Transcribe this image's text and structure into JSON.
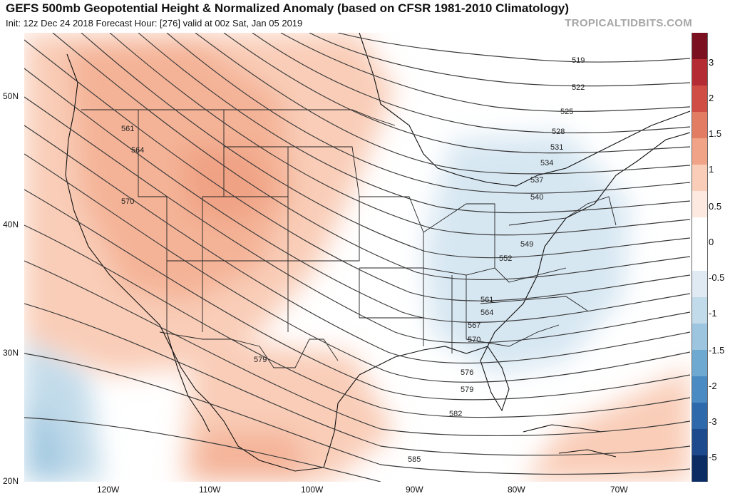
{
  "title": "GEFS 500mb Geopotential Height & Normalized Anomaly (based on CFSR 1981-2010 Climatology)",
  "subtitle": "Init: 12z Dec 24 2018   Forecast Hour: [276]   valid at 00z Sat, Jan 05 2019",
  "brand": "TROPICALTIDBITS.COM",
  "lat_labels": [
    "50N",
    "40N",
    "30N",
    "20N"
  ],
  "lon_labels": [
    "120W",
    "110W",
    "100W",
    "90W",
    "80W",
    "70W"
  ],
  "colorbar": {
    "ticks": [
      "3",
      "2",
      "1.5",
      "1",
      "0.5",
      "0",
      "-0.5",
      "-1",
      "-1.5",
      "-2",
      "-3",
      "-5"
    ],
    "colors": [
      "#7a1020",
      "#b52b33",
      "#cf4d45",
      "#e27c63",
      "#f0a386",
      "#f9cdb8",
      "#fde9df",
      "#ffffff",
      "#ffffff",
      "#dfeaf3",
      "#c2dbea",
      "#9ec5df",
      "#6ea9d1",
      "#4a8bc3",
      "#2e69ab",
      "#1c4a8c",
      "#0c2c64"
    ]
  },
  "contour_labels": [
    "519",
    "522",
    "525",
    "528",
    "531",
    "534",
    "537",
    "540",
    "549",
    "552",
    "561",
    "564",
    "567",
    "570",
    "576",
    "579",
    "582",
    "585",
    "561",
    "564",
    "570",
    "579"
  ]
}
